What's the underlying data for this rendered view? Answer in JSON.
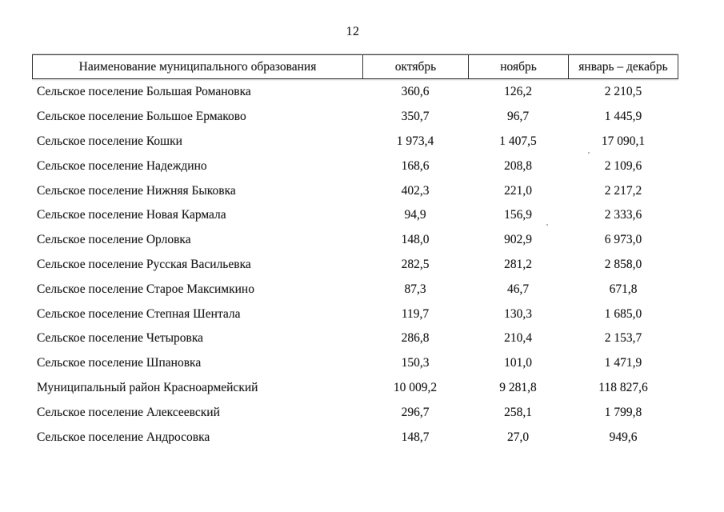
{
  "page": {
    "number": "12"
  },
  "table": {
    "columns": [
      "Наименование муниципального образования",
      "октябрь",
      "ноябрь",
      "январь – декабрь"
    ],
    "rows": [
      {
        "name": "Сельское поселение Большая Романовка",
        "october": "360,6",
        "november": "126,2",
        "jan_dec": "2 210,5"
      },
      {
        "name": "Сельское поселение Большое Ермаково",
        "october": "350,7",
        "november": "96,7",
        "jan_dec": "1 445,9"
      },
      {
        "name": "Сельское поселение Кошки",
        "october": "1 973,4",
        "november": "1 407,5",
        "jan_dec": "17 090,1"
      },
      {
        "name": "Сельское поселение Надеждино",
        "october": "168,6",
        "november": "208,8",
        "jan_dec": "2 109,6"
      },
      {
        "name": "Сельское поселение Нижняя Быковка",
        "october": "402,3",
        "november": "221,0",
        "jan_dec": "2 217,2"
      },
      {
        "name": "Сельское поселение Новая Кармала",
        "october": "94,9",
        "november": "156,9",
        "jan_dec": "2 333,6"
      },
      {
        "name": "Сельское поселение Орловка",
        "october": "148,0",
        "november": "902,9",
        "jan_dec": "6 973,0"
      },
      {
        "name": "Сельское поселение Русская Васильевка",
        "october": "282,5",
        "november": "281,2",
        "jan_dec": "2 858,0"
      },
      {
        "name": "Сельское поселение Старое Максимкино",
        "october": "87,3",
        "november": "46,7",
        "jan_dec": "671,8"
      },
      {
        "name": "Сельское поселение Степная Шентала",
        "october": "119,7",
        "november": "130,3",
        "jan_dec": "1 685,0"
      },
      {
        "name": "Сельское поселение Четыровка",
        "october": "286,8",
        "november": "210,4",
        "jan_dec": "2 153,7"
      },
      {
        "name": "Сельское поселение Шпановка",
        "october": "150,3",
        "november": "101,0",
        "jan_dec": "1 471,9"
      },
      {
        "name": "Муниципальный район Красноармейский",
        "october": "10 009,2",
        "november": "9 281,8",
        "jan_dec": "118 827,6"
      },
      {
        "name": "Сельское поселение Алексеевский",
        "october": "296,7",
        "november": "258,1",
        "jan_dec": "1 799,8"
      },
      {
        "name": "Сельское поселение Андросовка",
        "october": "148,7",
        "november": "27,0",
        "jan_dec": "949,6"
      }
    ]
  },
  "colors": {
    "background": "#ffffff",
    "text": "#1c1c1c",
    "border": "#343434"
  }
}
